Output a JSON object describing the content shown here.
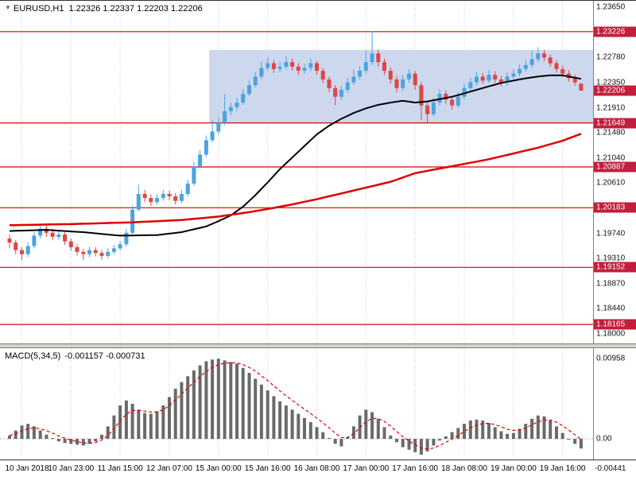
{
  "header": {
    "symbol": "EURUSD,H1",
    "ohlc": "1.22326 1.22337 1.22203 1.22206"
  },
  "chart_data": [
    {
      "type": "candlestick",
      "symbol": "EURUSD",
      "timeframe": "H1",
      "current_bar": {
        "open": 1.22326,
        "high": 1.22337,
        "low": 1.22203,
        "close": 1.22206
      },
      "up_color": "#4ba3e0",
      "down_color": "#e04545",
      "level_color": "#dd0000",
      "badge_color": "#c11f3d",
      "y_range": {
        "top": 1.23759,
        "bottom": 1.17837
      },
      "x_labels": [
        "10 Jan 2018",
        "10 Jan 23:00",
        "11 Jan 15:00",
        "12 Jan 07:00",
        "15 Jan 00:00",
        "15 Jan 16:00",
        "16 Jan 08:00",
        "17 Jan 00:00",
        "17 Jan 16:00",
        "18 Jan 08:00",
        "19 Jan 00:00",
        "19 Jan 16:00"
      ],
      "x_label_bars": [
        2,
        10,
        18,
        26,
        34,
        42,
        50,
        58,
        66,
        74,
        82,
        90
      ],
      "y_ticks": [
        {
          "price": 1.2365,
          "label": "1.23650"
        },
        {
          "price": 1.2278,
          "label": "1.22780"
        },
        {
          "price": 1.2235,
          "label": "1.22350"
        },
        {
          "price": 1.2191,
          "label": "1.21910"
        },
        {
          "price": 1.2148,
          "label": "1.21480"
        },
        {
          "price": 1.2104,
          "label": "1.21040"
        },
        {
          "price": 1.2061,
          "label": "1.20610"
        },
        {
          "price": 1.1974,
          "label": "1.19740"
        },
        {
          "price": 1.1931,
          "label": "1.19310"
        },
        {
          "price": 1.1887,
          "label": "1.18870"
        },
        {
          "price": 1.1844,
          "label": "1.18440"
        },
        {
          "price": 1.18,
          "label": "1.18000"
        }
      ],
      "levels": [
        {
          "price": 1.23226,
          "label": "1.23226"
        },
        {
          "price": 1.21649,
          "label": "1.21649"
        },
        {
          "price": 1.20887,
          "label": "1.20887"
        },
        {
          "price": 1.20183,
          "label": "1.20183"
        },
        {
          "price": 1.19152,
          "label": "1.19152"
        },
        {
          "price": 1.18165,
          "label": "1.18165"
        }
      ],
      "current_price": {
        "price": 1.22206,
        "label": "1.22206"
      },
      "region": {
        "start_bar": 32.5,
        "top": 1.2291,
        "bottom": 1.21649,
        "color": "#cdd8ee"
      },
      "series": [
        {
          "name": "MA fast",
          "data_name": "ma-black-line",
          "color": "#000000",
          "width": 2,
          "points": [
            [
              0,
              1.1978
            ],
            [
              6,
              1.198
            ],
            [
              12,
              1.1976
            ],
            [
              18,
              1.197
            ],
            [
              24,
              1.1971
            ],
            [
              28,
              1.1976
            ],
            [
              32,
              1.1986
            ],
            [
              34,
              1.1995
            ],
            [
              36,
              1.2005
            ],
            [
              38,
              1.202
            ],
            [
              40,
              1.204
            ],
            [
              42,
              1.2062
            ],
            [
              44,
              1.2085
            ],
            [
              46,
              1.2105
            ],
            [
              48,
              1.2125
            ],
            [
              50,
              1.2145
            ],
            [
              52,
              1.216
            ],
            [
              54,
              1.2172
            ],
            [
              56,
              1.2182
            ],
            [
              58,
              1.219
            ],
            [
              60,
              1.2196
            ],
            [
              62,
              1.22
            ],
            [
              64,
              1.2203
            ],
            [
              66,
              1.22
            ],
            [
              68,
              1.2202
            ],
            [
              70,
              1.2206
            ],
            [
              72,
              1.221
            ],
            [
              74,
              1.2216
            ],
            [
              76,
              1.2222
            ],
            [
              78,
              1.2228
            ],
            [
              80,
              1.2234
            ],
            [
              82,
              1.2238
            ],
            [
              84,
              1.2242
            ],
            [
              86,
              1.2245
            ],
            [
              88,
              1.2247
            ],
            [
              90,
              1.2247
            ],
            [
              93,
              1.2241
            ]
          ]
        },
        {
          "name": "MA slow",
          "data_name": "ma-red-line",
          "color": "#e00000",
          "width": 2.5,
          "points": [
            [
              0,
              1.1988
            ],
            [
              10,
              1.199
            ],
            [
              20,
              1.1993
            ],
            [
              28,
              1.1997
            ],
            [
              34,
              1.2003
            ],
            [
              38,
              1.2009
            ],
            [
              42,
              1.2016
            ],
            [
              46,
              1.2024
            ],
            [
              50,
              1.2033
            ],
            [
              54,
              1.2043
            ],
            [
              58,
              1.2053
            ],
            [
              62,
              1.2063
            ],
            [
              66,
              1.2078
            ],
            [
              70,
              1.2086
            ],
            [
              74,
              1.2094
            ],
            [
              78,
              1.2102
            ],
            [
              82,
              1.2112
            ],
            [
              86,
              1.2122
            ],
            [
              90,
              1.2134
            ],
            [
              93,
              1.2146
            ]
          ]
        }
      ],
      "candles": [
        [
          1.1965,
          1.1972,
          1.1948,
          1.1958
        ],
        [
          1.1958,
          1.1962,
          1.1938,
          1.1945
        ],
        [
          1.1945,
          1.195,
          1.1928,
          1.1938
        ],
        [
          1.1938,
          1.1958,
          1.1933,
          1.1952
        ],
        [
          1.1952,
          1.1976,
          1.1948,
          1.197
        ],
        [
          1.197,
          1.1991,
          1.1965,
          1.1982
        ],
        [
          1.1982,
          1.1988,
          1.1968,
          1.1975
        ],
        [
          1.1975,
          1.1982,
          1.1962,
          1.1968
        ],
        [
          1.1968,
          1.1979,
          1.1963,
          1.1972
        ],
        [
          1.1972,
          1.1976,
          1.1954,
          1.196
        ],
        [
          1.196,
          1.1965,
          1.1944,
          1.195
        ],
        [
          1.195,
          1.1955,
          1.1936,
          1.1942
        ],
        [
          1.1942,
          1.1947,
          1.1928,
          1.1938
        ],
        [
          1.1938,
          1.1951,
          1.1933,
          1.1945
        ],
        [
          1.1945,
          1.195,
          1.1934,
          1.194
        ],
        [
          1.194,
          1.1945,
          1.1929,
          1.1935
        ],
        [
          1.1935,
          1.1948,
          1.1931,
          1.1942
        ],
        [
          1.1942,
          1.1954,
          1.1938,
          1.1948
        ],
        [
          1.1948,
          1.1961,
          1.1944,
          1.1955
        ],
        [
          1.1955,
          1.1982,
          1.1951,
          1.1975
        ],
        [
          1.1975,
          1.2022,
          1.1972,
          1.2015
        ],
        [
          1.2015,
          1.2058,
          1.2012,
          1.2042
        ],
        [
          1.2042,
          1.2049,
          1.2028,
          1.2035
        ],
        [
          1.2035,
          1.2041,
          1.2021,
          1.2028
        ],
        [
          1.2028,
          1.2042,
          1.2023,
          1.2035
        ],
        [
          1.2035,
          1.2049,
          1.203,
          1.2042
        ],
        [
          1.2042,
          1.2048,
          1.2031,
          1.2038
        ],
        [
          1.2038,
          1.2044,
          1.2024,
          1.203
        ],
        [
          1.203,
          1.2049,
          1.2026,
          1.2042
        ],
        [
          1.2042,
          1.2067,
          1.2038,
          1.206
        ],
        [
          1.206,
          1.2097,
          1.2056,
          1.209
        ],
        [
          1.209,
          1.2118,
          1.2086,
          1.211
        ],
        [
          1.211,
          1.2143,
          1.2106,
          1.2135
        ],
        [
          1.2135,
          1.217,
          1.2131,
          1.215
        ],
        [
          1.215,
          1.2174,
          1.2145,
          1.2165
        ],
        [
          1.2165,
          1.2215,
          1.2161,
          1.2185
        ],
        [
          1.2185,
          1.22,
          1.2178,
          1.2192
        ],
        [
          1.2192,
          1.2208,
          1.2186,
          1.22
        ],
        [
          1.22,
          1.2223,
          1.2196,
          1.2215
        ],
        [
          1.2215,
          1.2238,
          1.2211,
          1.223
        ],
        [
          1.223,
          1.2253,
          1.2226,
          1.2245
        ],
        [
          1.2245,
          1.2271,
          1.2241,
          1.226
        ],
        [
          1.226,
          1.2278,
          1.2255,
          1.2268
        ],
        [
          1.2268,
          1.2274,
          1.2251,
          1.2258
        ],
        [
          1.2258,
          1.227,
          1.2253,
          1.2262
        ],
        [
          1.2262,
          1.228,
          1.2257,
          1.227
        ],
        [
          1.227,
          1.2276,
          1.2255,
          1.2262
        ],
        [
          1.2262,
          1.2268,
          1.2248,
          1.2255
        ],
        [
          1.2255,
          1.2267,
          1.225,
          1.226
        ],
        [
          1.226,
          1.2276,
          1.2254,
          1.2268
        ],
        [
          1.2268,
          1.2272,
          1.2248,
          1.2255
        ],
        [
          1.2255,
          1.226,
          1.2234,
          1.224
        ],
        [
          1.224,
          1.2245,
          1.2218,
          1.2225
        ],
        [
          1.2225,
          1.223,
          1.2195,
          1.221
        ],
        [
          1.221,
          1.2229,
          1.2204,
          1.2222
        ],
        [
          1.2222,
          1.2243,
          1.2217,
          1.2235
        ],
        [
          1.2235,
          1.2258,
          1.223,
          1.2245
        ],
        [
          1.2245,
          1.2263,
          1.224,
          1.2255
        ],
        [
          1.2255,
          1.229,
          1.225,
          1.227
        ],
        [
          1.227,
          1.2323,
          1.2265,
          1.2285
        ],
        [
          1.2285,
          1.2292,
          1.2262,
          1.227
        ],
        [
          1.227,
          1.2276,
          1.2248,
          1.2255
        ],
        [
          1.2255,
          1.2261,
          1.2233,
          1.224
        ],
        [
          1.224,
          1.2246,
          1.2218,
          1.2225
        ],
        [
          1.2225,
          1.2248,
          1.222,
          1.224
        ],
        [
          1.224,
          1.2258,
          1.2234,
          1.225
        ],
        [
          1.225,
          1.2255,
          1.2222,
          1.223
        ],
        [
          1.223,
          1.2235,
          1.217,
          1.2195
        ],
        [
          1.2195,
          1.2201,
          1.2165,
          1.218
        ],
        [
          1.218,
          1.2208,
          1.2176,
          1.22
        ],
        [
          1.22,
          1.2223,
          1.2195,
          1.2215
        ],
        [
          1.2215,
          1.2221,
          1.2198,
          1.2205
        ],
        [
          1.2205,
          1.2211,
          1.2188,
          1.2195
        ],
        [
          1.2195,
          1.2218,
          1.2191,
          1.221
        ],
        [
          1.221,
          1.2233,
          1.2206,
          1.2225
        ],
        [
          1.2225,
          1.2243,
          1.222,
          1.2235
        ],
        [
          1.2235,
          1.2253,
          1.223,
          1.2245
        ],
        [
          1.2245,
          1.2251,
          1.2232,
          1.2238
        ],
        [
          1.2238,
          1.2256,
          1.2234,
          1.2248
        ],
        [
          1.2248,
          1.2254,
          1.2234,
          1.224
        ],
        [
          1.224,
          1.2246,
          1.2228,
          1.2235
        ],
        [
          1.2235,
          1.2252,
          1.223,
          1.2245
        ],
        [
          1.2245,
          1.2258,
          1.2241,
          1.225
        ],
        [
          1.225,
          1.2266,
          1.2245,
          1.2258
        ],
        [
          1.2258,
          1.2274,
          1.2253,
          1.2265
        ],
        [
          1.2265,
          1.229,
          1.226,
          1.2275
        ],
        [
          1.2275,
          1.2296,
          1.227,
          1.2285
        ],
        [
          1.2285,
          1.2291,
          1.2272,
          1.2278
        ],
        [
          1.2278,
          1.2283,
          1.2262,
          1.2268
        ],
        [
          1.2268,
          1.2273,
          1.2252,
          1.2258
        ],
        [
          1.2258,
          1.2264,
          1.2244,
          1.225
        ],
        [
          1.225,
          1.2256,
          1.2236,
          1.2242
        ],
        [
          1.2242,
          1.2248,
          1.2229,
          1.2235
        ],
        [
          1.22326,
          1.22337,
          1.22203,
          1.22206
        ]
      ]
    },
    {
      "type": "bar",
      "name": "MACD",
      "label": "MACD(5,34,5)",
      "values_label": "-0.001157 -0.000731",
      "macd_value": -0.001157,
      "signal_value": -0.000731,
      "bar_color": "#6a6a6a",
      "signal_color": "#e00000",
      "scale": {
        "max": {
          "label": "0.00958",
          "value": 0.00958
        },
        "zero": {
          "label": "0.00",
          "value": 0
        },
        "min": {
          "label": "-0.00441",
          "value": -0.00441
        }
      },
      "histogram": [
        0.0004,
        0.001,
        0.0016,
        0.0018,
        0.0015,
        0.001,
        0.0005,
        0.0001,
        -0.0003,
        -0.0005,
        -0.0006,
        -0.0007,
        -0.0008,
        -0.0006,
        -0.0003,
        0.0005,
        0.0015,
        0.0028,
        0.004,
        0.0046,
        0.0042,
        0.0035,
        0.0031,
        0.003,
        0.0033,
        0.004,
        0.005,
        0.006,
        0.0068,
        0.0075,
        0.0082,
        0.0088,
        0.0093,
        0.0095,
        0.0096,
        0.0094,
        0.0092,
        0.009,
        0.0085,
        0.0079,
        0.0072,
        0.0065,
        0.0058,
        0.0051,
        0.0045,
        0.004,
        0.0035,
        0.003,
        0.0025,
        0.002,
        0.0014,
        0.0008,
        0.0001,
        -0.0006,
        -0.0009,
        0.0002,
        0.0015,
        0.0028,
        0.0035,
        0.0032,
        0.0024,
        0.0014,
        0.0004,
        -0.0004,
        -0.001,
        -0.0013,
        -0.0016,
        -0.0019,
        -0.0015,
        -0.0008,
        -0.0002,
        0.0003,
        0.0008,
        0.0013,
        0.0018,
        0.0022,
        0.0023,
        0.0022,
        0.0019,
        0.0014,
        0.0009,
        0.0006,
        0.0007,
        0.0012,
        0.0018,
        0.0024,
        0.0028,
        0.0027,
        0.0022,
        0.0015,
        0.0007,
        0,
        -0.0006,
        -0.00116
      ]
    }
  ]
}
